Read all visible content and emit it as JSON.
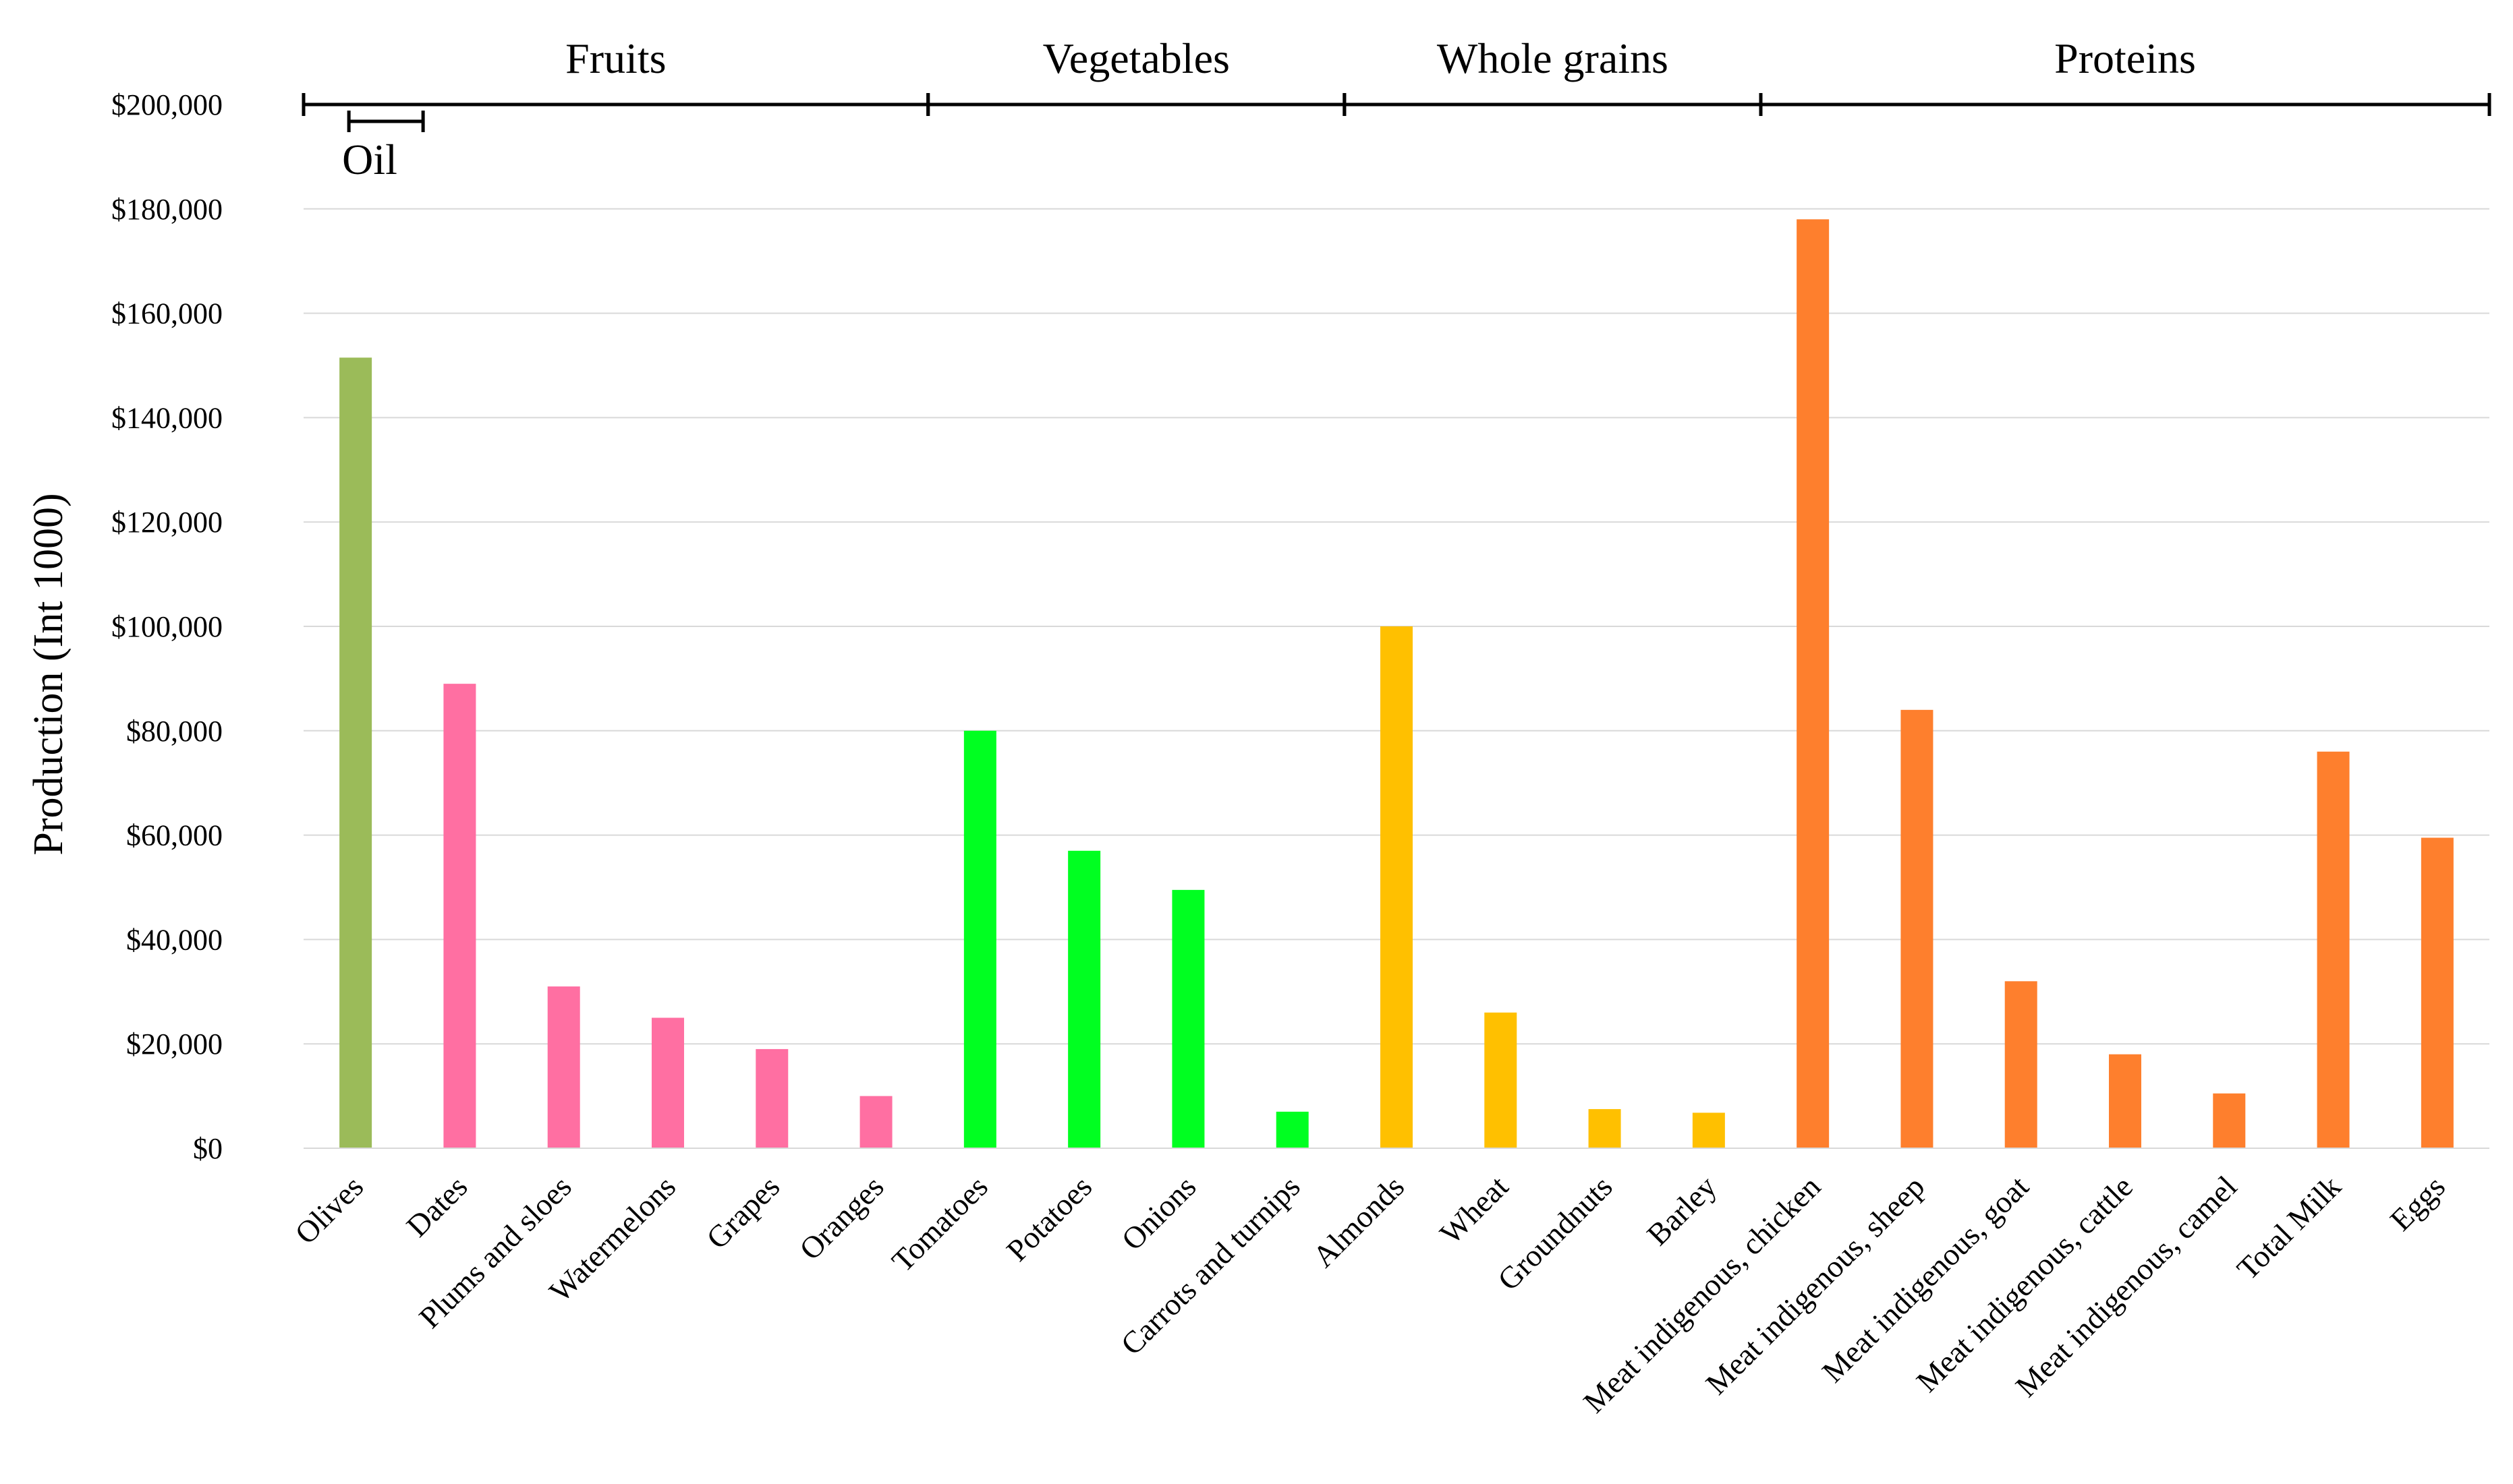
{
  "chart_data": {
    "type": "bar",
    "title": "",
    "xlabel": "",
    "ylabel": "Production (Int 1000)",
    "ylim": [
      0,
      200000
    ],
    "yticks": [
      0,
      20000,
      40000,
      60000,
      80000,
      100000,
      120000,
      140000,
      160000,
      180000,
      200000
    ],
    "ytick_labels": [
      "$0",
      "$20,000",
      "$40,000",
      "$60,000",
      "$80,000",
      "$100,000",
      "$120,000",
      "$140,000",
      "$160,000",
      "$180,000",
      "$200,000"
    ],
    "grid": true,
    "legend": "none",
    "categories": [
      "Olives",
      "Dates",
      "Plums and sloes",
      "Watermelons",
      "Grapes",
      "Oranges",
      "Tomatoes",
      "Potatoes",
      "Onions",
      "Carrots and turnips",
      "Almonds",
      "Wheat",
      "Groundnuts",
      "Barley",
      "Meat indigenous, chicken",
      "Meat indigenous, sheep",
      "Meat indigenous, goat",
      "Meat indigenous, cattle",
      "Meat indigenous, camel",
      "Total Milk",
      "Eggs"
    ],
    "values": [
      151500,
      89000,
      31000,
      25000,
      19000,
      10000,
      80000,
      57000,
      49500,
      7000,
      100000,
      26000,
      7500,
      6800,
      178000,
      84000,
      32000,
      18000,
      10500,
      76000,
      59500
    ],
    "bar_colors": [
      "#9bbb59",
      "#ff6fa2",
      "#ff6fa2",
      "#ff6fa2",
      "#ff6fa2",
      "#ff6fa2",
      "#00ff21",
      "#00ff21",
      "#00ff21",
      "#00ff21",
      "#ffc000",
      "#ffc000",
      "#ffc000",
      "#ffc000",
      "#fe7f2d",
      "#fe7f2d",
      "#fe7f2d",
      "#fe7f2d",
      "#fe7f2d",
      "#fe7f2d",
      "#fe7f2d"
    ],
    "groups": [
      {
        "label": "Oil",
        "start": 0,
        "end": 0
      },
      {
        "label": "Fruits",
        "start": 0,
        "end": 5
      },
      {
        "label": "Vegetables",
        "start": 6,
        "end": 9
      },
      {
        "label": "Whole grains",
        "start": 10,
        "end": 13
      },
      {
        "label": "Proteins",
        "start": 14,
        "end": 20
      }
    ]
  }
}
